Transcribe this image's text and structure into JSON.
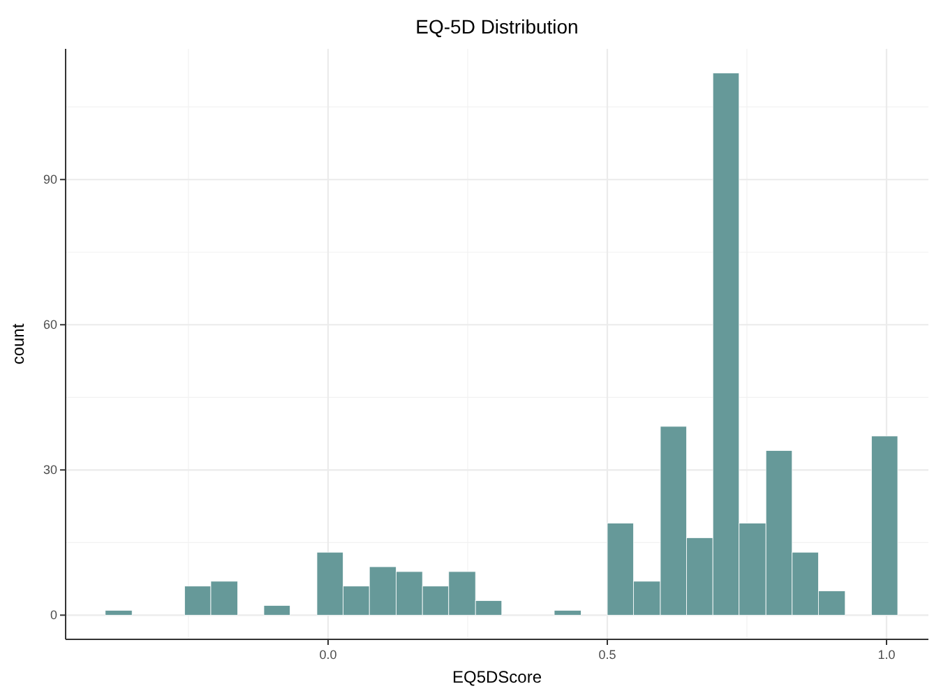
{
  "chart_data": {
    "type": "histogram",
    "title": "EQ-5D Distribution",
    "xlabel": "EQ5DScore",
    "ylabel": "count",
    "bins": [
      -0.399,
      -0.351,
      -0.257,
      -0.21,
      -0.162,
      -0.115,
      -0.068,
      -0.02,
      0.027,
      0.074,
      0.122,
      0.169,
      0.216,
      0.264,
      0.311,
      0.405,
      0.453,
      0.5,
      0.547,
      0.595,
      0.642,
      0.689,
      0.736,
      0.784,
      0.831,
      0.878,
      0.926,
      0.973,
      1.02
    ],
    "values": [
      1,
      0,
      6,
      7,
      0,
      2,
      0,
      13,
      6,
      10,
      9,
      6,
      9,
      3,
      0,
      1,
      0,
      19,
      7,
      39,
      16,
      112,
      19,
      34,
      13,
      5,
      0,
      37
    ],
    "color": "#669999",
    "xlim": [
      -0.47,
      1.075
    ],
    "xticks": [
      {
        "value": 0,
        "label": "0.0"
      },
      {
        "value": 0.5,
        "label": "0.5"
      },
      {
        "value": 1,
        "label": "1.0"
      }
    ],
    "ylim": [
      -5,
      117
    ],
    "yticks": [
      0,
      30,
      60,
      90
    ],
    "grid": true
  }
}
